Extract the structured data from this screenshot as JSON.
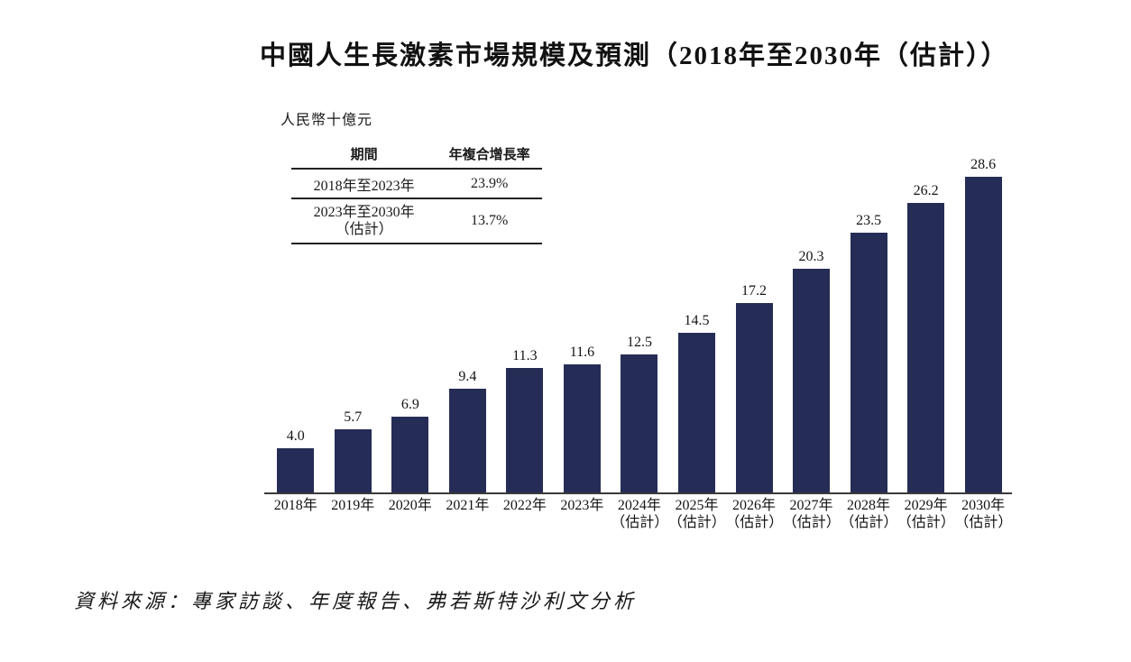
{
  "title": "中國人生長激素市場規模及預測（2018年至2030年（估計））",
  "unit_label": "人民幣十億元",
  "cagr_table": {
    "headers": [
      "期間",
      "年複合增長率"
    ],
    "rows": [
      {
        "period": "2018年至2023年",
        "period_note": "",
        "cagr": "23.9%"
      },
      {
        "period": "2023年至2030年",
        "period_note": "（估計）",
        "cagr": "13.7%"
      }
    ]
  },
  "chart_data": {
    "type": "bar",
    "title": "中國人生長激素市場規模及預測（2018年至2030年（估計））",
    "xlabel": "",
    "ylabel": "人民幣十億元",
    "ylim": [
      0,
      30
    ],
    "grid": false,
    "legend": "none",
    "bar_color": "#252C55",
    "bars": [
      {
        "category": "2018年",
        "category_note": "",
        "value": 4.0
      },
      {
        "category": "2019年",
        "category_note": "",
        "value": 5.7
      },
      {
        "category": "2020年",
        "category_note": "",
        "value": 6.9
      },
      {
        "category": "2021年",
        "category_note": "",
        "value": 9.4
      },
      {
        "category": "2022年",
        "category_note": "",
        "value": 11.3
      },
      {
        "category": "2023年",
        "category_note": "",
        "value": 11.6
      },
      {
        "category": "2024年",
        "category_note": "（估計）",
        "value": 12.5
      },
      {
        "category": "2025年",
        "category_note": "（估計）",
        "value": 14.5
      },
      {
        "category": "2026年",
        "category_note": "（估計）",
        "value": 17.2
      },
      {
        "category": "2027年",
        "category_note": "（估計）",
        "value": 20.3
      },
      {
        "category": "2028年",
        "category_note": "（估計）",
        "value": 23.5
      },
      {
        "category": "2029年",
        "category_note": "（估計）",
        "value": 26.2
      },
      {
        "category": "2030年",
        "category_note": "（估計）",
        "value": 28.6
      }
    ]
  },
  "cagr_periods": {
    "period_1": "2018年至2023年",
    "cagr_1": "23.9%",
    "period_2": "2023年至2030年（估計）",
    "cagr_2": "13.7%"
  },
  "source": "資料來源：專家訪談、年度報告、弗若斯特沙利文分析"
}
